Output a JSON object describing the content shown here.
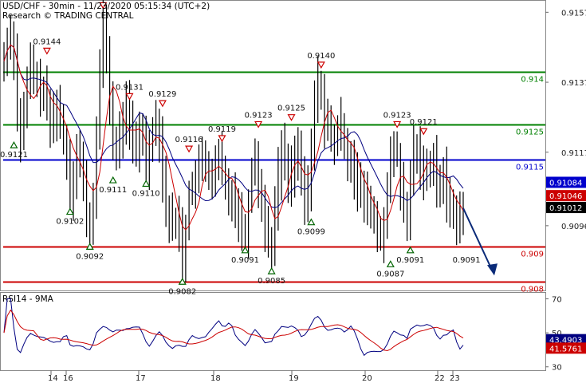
{
  "header": {
    "line1": "USD/CHF - 30min - 11/23/2020 05:15:34 (UTC+2)",
    "line2": "Research © TRADING CENTRAL"
  },
  "colors": {
    "price": "#000000",
    "ma_fast": "#cc0000",
    "ma_slow": "#000080",
    "support": "#cc0000",
    "resistance": "#008000",
    "pivot": "#0000cc",
    "up_marker": "#006400",
    "down_marker": "#cc0000",
    "forecast": "#0a2a78"
  },
  "chart_data": [
    {
      "type": "line",
      "pair": "USD/CHF",
      "timeframe": "30min",
      "ylim": [
        0.90775,
        0.91605
      ],
      "y_ticks": [
        0.9157,
        0.9137,
        0.9117,
        0.9096
      ],
      "x_ticks": [
        "14",
        "16",
        "17",
        "18",
        "19",
        "20",
        "22",
        "23"
      ],
      "levels": [
        {
          "label": "0.914",
          "value": 0.914,
          "kind": "resistance"
        },
        {
          "label": "0.9125",
          "value": 0.9125,
          "kind": "resistance"
        },
        {
          "label": "0.9115",
          "value": 0.9115,
          "kind": "pivot"
        },
        {
          "label": "0.909",
          "value": 0.909,
          "kind": "support"
        },
        {
          "label": "0.908",
          "value": 0.908,
          "kind": "support"
        }
      ],
      "badges": [
        {
          "label": "0.91084",
          "value": 0.91084,
          "color": "#0000cc"
        },
        {
          "label": "0.91046",
          "value": 0.91046,
          "color": "#cc0000"
        },
        {
          "label": "0.91012",
          "value": 0.91012,
          "color": "#000000"
        }
      ],
      "annotations": [
        {
          "label": "0.9144",
          "bar": 13,
          "value": 0.9144,
          "marker": "down"
        },
        {
          "label": "0.9157",
          "bar": 30,
          "value": 0.9157,
          "marker": "down"
        },
        {
          "label": "0.9131",
          "bar": 38,
          "value": 0.9131,
          "marker": "down"
        },
        {
          "label": "0.9129",
          "bar": 48,
          "value": 0.9129,
          "marker": "down"
        },
        {
          "label": "0.9116",
          "bar": 56,
          "value": 0.9116,
          "marker": "down"
        },
        {
          "label": "0.9119",
          "bar": 66,
          "value": 0.9119,
          "marker": "down"
        },
        {
          "label": "0.9123",
          "bar": 77,
          "value": 0.9123,
          "marker": "down"
        },
        {
          "label": "0.9125",
          "bar": 87,
          "value": 0.9125,
          "marker": "down"
        },
        {
          "label": "0.9140",
          "bar": 96,
          "value": 0.914,
          "marker": "down"
        },
        {
          "label": "0.9123",
          "bar": 119,
          "value": 0.9123,
          "marker": "down"
        },
        {
          "label": "0.9121",
          "bar": 127,
          "value": 0.9121,
          "marker": "down"
        },
        {
          "label": "0.9121",
          "bar": 3,
          "value": 0.9121,
          "marker": "up"
        },
        {
          "label": "0.9102",
          "bar": 20,
          "value": 0.9102,
          "marker": "up"
        },
        {
          "label": "0.9111",
          "bar": 33,
          "value": 0.9111,
          "marker": "up"
        },
        {
          "label": "0.9110",
          "bar": 43,
          "value": 0.911,
          "marker": "up"
        },
        {
          "label": "0.9092",
          "bar": 26,
          "value": 0.9092,
          "marker": "up"
        },
        {
          "label": "0.9082",
          "bar": 54,
          "value": 0.9082,
          "marker": "up"
        },
        {
          "label": "0.9091",
          "bar": 73,
          "value": 0.9091,
          "marker": "up"
        },
        {
          "label": "0.9085",
          "bar": 81,
          "value": 0.9085,
          "marker": "up"
        },
        {
          "label": "0.9099",
          "bar": 93,
          "value": 0.9099,
          "marker": "up"
        },
        {
          "label": "0.9087",
          "bar": 117,
          "value": 0.9087,
          "marker": "up"
        },
        {
          "label": "0.9091",
          "bar": 123,
          "value": 0.9091,
          "marker": "up"
        },
        {
          "label": "0.9091",
          "bar": 140,
          "value": 0.9091,
          "marker": "none"
        }
      ],
      "price_close": [
        0.9143,
        0.9149,
        0.9151,
        0.9145,
        0.9128,
        0.9121,
        0.9128,
        0.9136,
        0.9142,
        0.9139,
        0.9136,
        0.9135,
        0.9134,
        0.913,
        0.9124,
        0.9128,
        0.9131,
        0.9125,
        0.9121,
        0.9116,
        0.9105,
        0.9111,
        0.9118,
        0.9114,
        0.9108,
        0.9099,
        0.9094,
        0.9103,
        0.9124,
        0.914,
        0.9154,
        0.9145,
        0.9132,
        0.912,
        0.9116,
        0.9122,
        0.9127,
        0.913,
        0.9125,
        0.912,
        0.9116,
        0.9124,
        0.9121,
        0.9114,
        0.9119,
        0.9124,
        0.9126,
        0.9122,
        0.911,
        0.9101,
        0.9098,
        0.9096,
        0.9098,
        0.9095,
        0.9087,
        0.9095,
        0.9105,
        0.9108,
        0.9109,
        0.9112,
        0.9116,
        0.9114,
        0.9111,
        0.9108,
        0.9112,
        0.9117,
        0.9111,
        0.9107,
        0.9104,
        0.9106,
        0.9102,
        0.9099,
        0.9095,
        0.9094,
        0.9103,
        0.9112,
        0.9117,
        0.9107,
        0.9102,
        0.9096,
        0.9092,
        0.909,
        0.9101,
        0.9111,
        0.9118,
        0.9114,
        0.9109,
        0.9112,
        0.9116,
        0.9118,
        0.9108,
        0.9102,
        0.9107,
        0.9117,
        0.9132,
        0.9137,
        0.9134,
        0.9126,
        0.9124,
        0.9121,
        0.9119,
        0.9123,
        0.9125,
        0.912,
        0.9115,
        0.9116,
        0.9111,
        0.9105,
        0.9107,
        0.9102,
        0.9104,
        0.9099,
        0.9098,
        0.9094,
        0.9092,
        0.9098,
        0.9106,
        0.9114,
        0.9118,
        0.9116,
        0.9107,
        0.91,
        0.9096,
        0.911,
        0.9118,
        0.9117,
        0.9114,
        0.9111,
        0.9111,
        0.9114,
        0.9116,
        0.9109,
        0.9106,
        0.9111,
        0.9103,
        0.9102,
        0.9101,
        0.9097,
        0.9098,
        0.9101
      ],
      "forecast_end": 0.9082,
      "rsi": {
        "label": "RSI14 - 9MA",
        "ylim": [
          28,
          74
        ],
        "y_ticks": [
          70,
          50,
          30
        ],
        "last_rsi_label": "43.4903",
        "last_ma_label": "41.5761",
        "rsi_color": "#000080",
        "ma_color": "#cc0000"
      }
    }
  ]
}
